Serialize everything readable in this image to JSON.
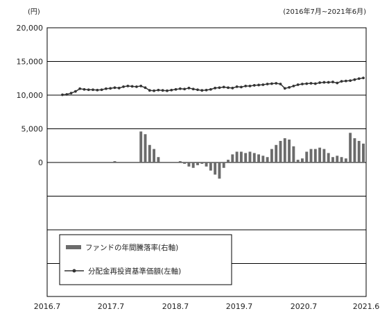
{
  "chart_data": {
    "type": "bar",
    "unit_label": "(円)",
    "period_note": "(2016年7月~2021年6月)",
    "y_left": {
      "min": 0,
      "max": 20000,
      "ticks": [
        20000,
        15000,
        10000,
        5000,
        0
      ],
      "tick_labels": [
        "20,000",
        "15,000",
        "10,000",
        "5,000",
        "0"
      ]
    },
    "y_right": {
      "min": -10,
      "max": 10
    },
    "x_tick_labels": [
      "2016.7",
      "2017.7",
      "2018.7",
      "2019.7",
      "2020.7",
      "2021.6"
    ],
    "grid": true,
    "legend": {
      "position": "bottom-left",
      "bar_label": "ファンドの年間騰落率(右軸)",
      "line_label": "分配金再投資基準価額(左軸)"
    },
    "colors": {
      "bar": "#6b6b6b",
      "line": "#333333",
      "grid": "#000000"
    },
    "series": [
      {
        "name": "分配金再投資基準価額(左軸)",
        "axis": "left",
        "kind": "line",
        "values": [
          10050,
          10100,
          10300,
          10550,
          10950,
          10850,
          10800,
          10800,
          10750,
          10800,
          10950,
          11000,
          11100,
          11050,
          11250,
          11350,
          11300,
          11250,
          11350,
          11100,
          10700,
          10650,
          10750,
          10700,
          10650,
          10750,
          10850,
          10950,
          10900,
          11050,
          10900,
          10800,
          10700,
          10750,
          10850,
          11050,
          11100,
          11200,
          11100,
          11050,
          11250,
          11200,
          11350,
          11350,
          11450,
          11500,
          11550,
          11650,
          11700,
          11750,
          11650,
          11000,
          11150,
          11350,
          11550,
          11650,
          11700,
          11750,
          11700,
          11850,
          11900,
          11900,
          11950,
          11800,
          12050,
          12100,
          12150,
          12300,
          12450,
          12550
        ]
      },
      {
        "name": "ファンドの年間騰落率(右軸)",
        "axis": "right",
        "kind": "bar",
        "values": [
          0,
          0,
          0,
          0,
          0,
          0,
          0,
          0,
          0,
          0,
          0,
          0,
          0.1,
          0,
          0,
          0,
          0,
          0,
          2.3,
          2.1,
          1.3,
          1.0,
          0.4,
          0,
          0,
          0,
          0,
          0.1,
          -0.1,
          -0.3,
          -0.4,
          -0.2,
          -0.1,
          -0.3,
          -0.6,
          -0.9,
          -1.2,
          -0.4,
          0.2,
          0.6,
          0.8,
          0.8,
          0.7,
          0.8,
          0.7,
          0.6,
          0.5,
          0.4,
          1.0,
          1.3,
          1.6,
          1.8,
          1.7,
          1.2,
          0.2,
          0.3,
          0.8,
          1.0,
          1.0,
          1.1,
          1.0,
          0.7,
          0.4,
          0.5,
          0.4,
          0.3,
          2.2,
          1.8,
          1.6,
          1.4
        ]
      }
    ]
  }
}
